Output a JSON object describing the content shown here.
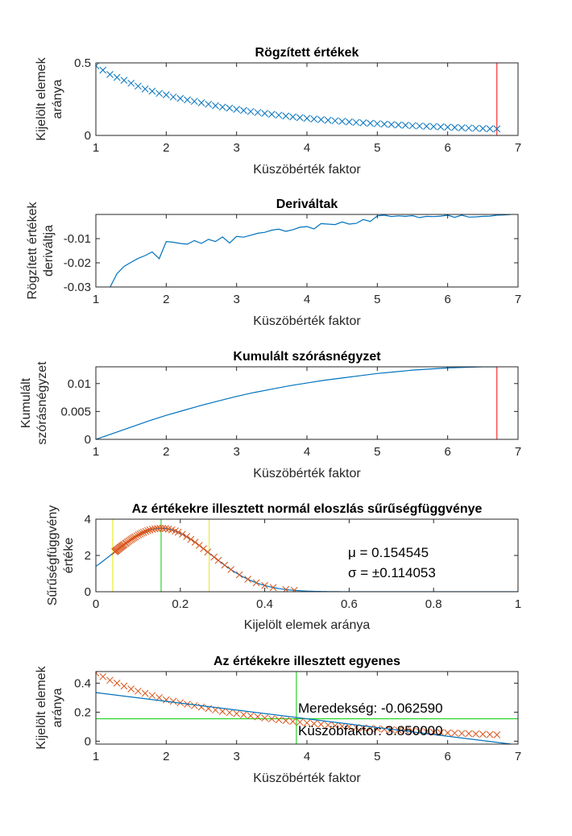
{
  "chart_data": [
    {
      "type": "scatter",
      "title": "Rögzített értékek",
      "xlabel": "Küszöbérték faktor",
      "ylabel": [
        "Kijelölt elemek",
        "aránya"
      ],
      "xlim": [
        1,
        7
      ],
      "ylim": [
        0,
        0.5
      ],
      "xticks": [
        1,
        2,
        3,
        4,
        5,
        6,
        7
      ],
      "yticks": [
        0,
        0.5
      ],
      "ytick_labels": [
        "0",
        "0.5"
      ],
      "grid": false,
      "series": [
        {
          "marker": "x",
          "color": "#0072BD",
          "x": [
            1.0,
            1.1,
            1.2,
            1.3,
            1.4,
            1.5,
            1.6,
            1.7,
            1.8,
            1.9,
            2.0,
            2.1,
            2.2,
            2.3,
            2.4,
            2.5,
            2.6,
            2.7,
            2.8,
            2.9,
            3.0,
            3.1,
            3.2,
            3.3,
            3.4,
            3.5,
            3.6,
            3.7,
            3.8,
            3.9,
            4.0,
            4.1,
            4.2,
            4.3,
            4.4,
            4.5,
            4.6,
            4.7,
            4.8,
            4.9,
            5.0,
            5.1,
            5.2,
            5.3,
            5.4,
            5.5,
            5.6,
            5.7,
            5.8,
            5.9,
            6.0,
            6.1,
            6.2,
            6.3,
            6.4,
            6.5,
            6.6,
            6.7
          ],
          "y": [
            0.48,
            0.45,
            0.42,
            0.4,
            0.38,
            0.36,
            0.34,
            0.32,
            0.305,
            0.29,
            0.28,
            0.265,
            0.255,
            0.245,
            0.235,
            0.225,
            0.215,
            0.205,
            0.195,
            0.188,
            0.18,
            0.172,
            0.165,
            0.158,
            0.152,
            0.146,
            0.14,
            0.134,
            0.128,
            0.123,
            0.118,
            0.113,
            0.109,
            0.105,
            0.101,
            0.097,
            0.093,
            0.09,
            0.087,
            0.084,
            0.081,
            0.078,
            0.075,
            0.072,
            0.07,
            0.067,
            0.065,
            0.063,
            0.061,
            0.059,
            0.057,
            0.055,
            0.053,
            0.051,
            0.049,
            0.048,
            0.046,
            0.045
          ]
        }
      ],
      "vlines": [
        {
          "x": 6.7,
          "color": "#ff0000"
        }
      ]
    },
    {
      "type": "line",
      "title": "Deriváltak",
      "xlabel": "Küszöbérték faktor",
      "ylabel": [
        "Rögzített értékek",
        "deriváltja"
      ],
      "xlim": [
        1,
        7
      ],
      "ylim": [
        -0.03,
        0
      ],
      "xticks": [
        1,
        2,
        3,
        4,
        5,
        6,
        7
      ],
      "yticks": [
        -0.03,
        -0.02,
        -0.01
      ],
      "ytick_labels": [
        "-0.03",
        "-0.02",
        "-0.01"
      ],
      "grid": false,
      "series": [
        {
          "color": "#0072BD",
          "x": [
            1.1,
            1.2,
            1.3,
            1.4,
            1.5,
            1.6,
            1.7,
            1.8,
            1.9,
            2.0,
            2.1,
            2.2,
            2.3,
            2.4,
            2.5,
            2.6,
            2.7,
            2.8,
            2.9,
            3.0,
            3.1,
            3.2,
            3.3,
            3.4,
            3.5,
            3.6,
            3.7,
            3.8,
            3.9,
            4.0,
            4.1,
            4.2,
            4.3,
            4.4,
            4.5,
            4.6,
            4.7,
            4.8,
            4.9,
            5.0,
            5.1,
            5.2,
            5.3,
            5.4,
            5.5,
            5.6,
            5.7,
            5.8,
            5.9,
            6.0,
            6.1,
            6.2,
            6.3,
            6.4,
            6.5,
            6.6,
            6.7,
            6.8,
            6.9
          ],
          "y": [
            -0.0302,
            -0.0302,
            -0.0245,
            -0.0215,
            -0.0198,
            -0.0182,
            -0.017,
            -0.0155,
            -0.0183,
            -0.0112,
            -0.0115,
            -0.012,
            -0.0123,
            -0.0108,
            -0.012,
            -0.0103,
            -0.0112,
            -0.0093,
            -0.0118,
            -0.0091,
            -0.0094,
            -0.0086,
            -0.0078,
            -0.0074,
            -0.0065,
            -0.0061,
            -0.007,
            -0.0063,
            -0.0053,
            -0.005,
            -0.006,
            -0.0038,
            -0.004,
            -0.0042,
            -0.0031,
            -0.004,
            -0.0037,
            -0.0021,
            -0.0029,
            -0.0006,
            -0.0003,
            -0.0009,
            -0.0006,
            -0.0008,
            -0.0005,
            -0.0013,
            -0.0008,
            -0.0009,
            -0.0007,
            -0.0003,
            -0.0012,
            -0.0003,
            -0.0011,
            -0.001,
            -0.0008,
            -0.0007,
            -0.0003,
            -0.0002,
            0.0
          ]
        }
      ]
    },
    {
      "type": "line",
      "title": "Kumulált szórásnégyzet",
      "xlabel": "Küszöbérték faktor",
      "ylabel": [
        "Kumulált",
        "szórásnégyzet"
      ],
      "xlim": [
        1,
        7
      ],
      "ylim": [
        0,
        0.013
      ],
      "xticks": [
        1,
        2,
        3,
        4,
        5,
        6,
        7
      ],
      "yticks": [
        0,
        0.005,
        0.01
      ],
      "ytick_labels": [
        "0",
        "0.005",
        "0.01"
      ],
      "grid": false,
      "series": [
        {
          "color": "#0072BD",
          "x": [
            1.0,
            1.25,
            1.5,
            1.75,
            2.0,
            2.25,
            2.5,
            2.75,
            3.0,
            3.25,
            3.5,
            3.75,
            4.0,
            4.25,
            4.5,
            4.75,
            5.0,
            5.25,
            5.5,
            5.75,
            6.0,
            6.25,
            6.5,
            6.7
          ],
          "y": [
            0.0,
            0.0011,
            0.0022,
            0.0033,
            0.0043,
            0.0052,
            0.0061,
            0.0069,
            0.0077,
            0.0084,
            0.009,
            0.0096,
            0.0101,
            0.0106,
            0.011,
            0.0114,
            0.0118,
            0.0121,
            0.0124,
            0.0126,
            0.0128,
            0.0129,
            0.013,
            0.013
          ]
        }
      ],
      "vlines": [
        {
          "x": 6.7,
          "color": "#ff0000"
        }
      ]
    },
    {
      "type": "line",
      "title": "Az értékekre illesztett normál eloszlás sűrűségfüggvénye",
      "xlabel": "Kijelölt elemek aránya",
      "ylabel": [
        "Sűrűségfüggvény",
        "értéke"
      ],
      "xlim": [
        0,
        1
      ],
      "ylim": [
        0,
        4
      ],
      "xticks": [
        0,
        0.2,
        0.4,
        0.6,
        0.8,
        1
      ],
      "xtick_labels": [
        "0",
        "0.2",
        "0.4",
        "0.6",
        "0.8",
        "1"
      ],
      "yticks": [
        0,
        2,
        4
      ],
      "ytick_labels": [
        "0",
        "2",
        "4"
      ],
      "grid": false,
      "mu": 0.154545,
      "sigma": 0.114053,
      "series": [
        {
          "kind": "pdf-curve",
          "color": "#0072BD",
          "x_from": 0,
          "x_to": 1
        },
        {
          "kind": "markers",
          "marker": "x",
          "color": "#D95319",
          "x": [
            0.045,
            0.046,
            0.048,
            0.049,
            0.051,
            0.053,
            0.055,
            0.057,
            0.059,
            0.061,
            0.063,
            0.065,
            0.067,
            0.07,
            0.072,
            0.075,
            0.078,
            0.081,
            0.084,
            0.087,
            0.09,
            0.093,
            0.097,
            0.101,
            0.105,
            0.109,
            0.113,
            0.118,
            0.123,
            0.128,
            0.134,
            0.14,
            0.146,
            0.152,
            0.158,
            0.165,
            0.172,
            0.18,
            0.188,
            0.195,
            0.205,
            0.215,
            0.225,
            0.235,
            0.245,
            0.255,
            0.265,
            0.28,
            0.29,
            0.305,
            0.32,
            0.34,
            0.36,
            0.38,
            0.4,
            0.42,
            0.45,
            0.47
          ]
        }
      ],
      "vlines": [
        {
          "x": 0.04,
          "color": "#e6e600"
        },
        {
          "x": 0.154545,
          "color": "#00cc00"
        },
        {
          "x": 0.2686,
          "color": "#e6e600"
        }
      ],
      "annotations": [
        "μ = 0.154545",
        "σ = ±0.114053"
      ]
    },
    {
      "type": "line",
      "title": "Az értékekre illesztett egyenes",
      "xlabel": "Küszöbérték faktor",
      "ylabel": [
        "Kijelölt elemek",
        "aránya"
      ],
      "xlim": [
        1,
        7
      ],
      "ylim": [
        -0.02,
        0.48
      ],
      "xticks": [
        1,
        2,
        3,
        4,
        5,
        6,
        7
      ],
      "yticks": [
        0,
        0.2,
        0.4
      ],
      "ytick_labels": [
        "0",
        "0.2",
        "0.4"
      ],
      "grid": false,
      "series": [
        {
          "kind": "markers",
          "marker": "x",
          "color": "#D95319",
          "x": [
            1.0,
            1.1,
            1.2,
            1.3,
            1.4,
            1.5,
            1.6,
            1.7,
            1.8,
            1.9,
            2.0,
            2.1,
            2.2,
            2.3,
            2.4,
            2.5,
            2.6,
            2.7,
            2.8,
            2.9,
            3.0,
            3.1,
            3.2,
            3.3,
            3.4,
            3.5,
            3.6,
            3.7,
            3.8,
            3.9,
            4.0,
            4.1,
            4.2,
            4.3,
            4.4,
            4.5,
            4.6,
            4.7,
            4.8,
            4.9,
            5.0,
            5.1,
            5.2,
            5.3,
            5.4,
            5.5,
            5.6,
            5.7,
            5.8,
            5.9,
            6.0,
            6.1,
            6.2,
            6.3,
            6.4,
            6.5,
            6.6,
            6.7
          ],
          "y": [
            0.47,
            0.445,
            0.42,
            0.4,
            0.38,
            0.36,
            0.345,
            0.33,
            0.315,
            0.3,
            0.285,
            0.275,
            0.265,
            0.255,
            0.245,
            0.235,
            0.225,
            0.215,
            0.205,
            0.197,
            0.19,
            0.182,
            0.175,
            0.168,
            0.16,
            0.154,
            0.148,
            0.142,
            0.136,
            0.131,
            0.126,
            0.121,
            0.116,
            0.111,
            0.107,
            0.103,
            0.099,
            0.095,
            0.091,
            0.088,
            0.085,
            0.082,
            0.079,
            0.076,
            0.073,
            0.07,
            0.067,
            0.065,
            0.062,
            0.06,
            0.058,
            0.056,
            0.054,
            0.052,
            0.05,
            0.048,
            0.046,
            0.044
          ]
        },
        {
          "kind": "line",
          "color": "#0072BD",
          "x": [
            1.0,
            6.9
          ],
          "y": [
            0.335,
            -0.02
          ]
        }
      ],
      "vlines": [
        {
          "x": 3.85,
          "color": "#00cc00"
        }
      ],
      "hlines": [
        {
          "y": 0.154545,
          "color": "#00cc00"
        }
      ],
      "annotations": [
        "Meredekség: -0.062590",
        "Küszöbfaktor: 3.850000"
      ]
    }
  ]
}
